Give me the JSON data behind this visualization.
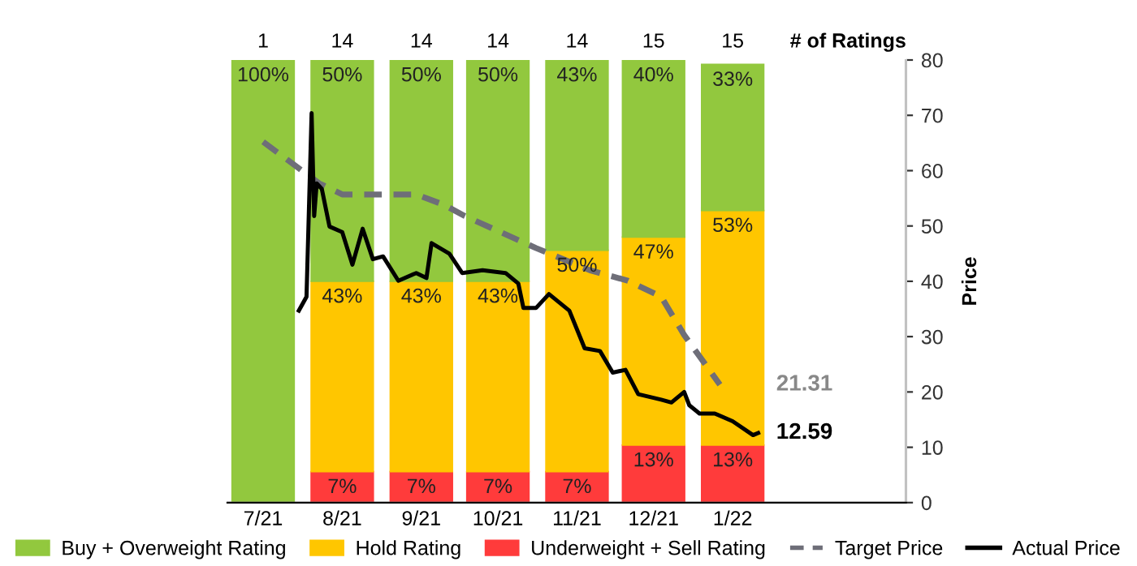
{
  "chart_data": {
    "type": "bar",
    "stacked": true,
    "legend": "bottom",
    "grid": false,
    "x": [
      "2021-07",
      "2021-08",
      "2021-09",
      "2021-10",
      "2021-11",
      "2021-12",
      "2022-01"
    ],
    "xlim": [
      "2021-06-17",
      "2022-03-10"
    ],
    "xticks": [
      {
        "value": "2021-07",
        "label": "7/21"
      },
      {
        "value": "2021-08",
        "label": "8/21"
      },
      {
        "value": "2021-09",
        "label": "9/21"
      },
      {
        "value": "2021-10",
        "label": "10/21"
      },
      {
        "value": "2021-11",
        "label": "11/21"
      },
      {
        "value": "2021-12",
        "label": "12/21"
      },
      {
        "value": "2022-01",
        "label": "1/22"
      }
    ],
    "series": [
      {
        "name": "Underweight + Sell Rating",
        "color": "#ff3b3b",
        "values": [
          null,
          7,
          7,
          7,
          7,
          13,
          13
        ],
        "value_labels": [
          null,
          "7%",
          "7%",
          "7%",
          "7%",
          "13%",
          "13%"
        ]
      },
      {
        "name": "Hold Rating",
        "color": "#ffc600",
        "values": [
          null,
          43,
          43,
          43,
          50,
          47,
          53
        ],
        "value_labels": [
          null,
          "43%",
          "43%",
          "43%",
          "50%",
          "47%",
          "53%"
        ]
      },
      {
        "name": "Buy + Overweight Rating",
        "color": "#92c83e",
        "values": [
          100,
          50,
          50,
          50,
          43,
          40,
          33
        ],
        "value_labels": [
          "100%",
          "50%",
          "50%",
          "50%",
          "43%",
          "40%",
          "33%"
        ]
      },
      {
        "name": "Target Price",
        "type": "line",
        "axis": "y2",
        "line_style": "dashed",
        "color": "#6e6e78",
        "x": [
          "2021-07-01",
          "2021-07-23",
          "2021-08-01",
          "2021-08-30",
          "2021-09-10",
          "2021-09-18",
          "2021-10-16",
          "2021-11-06",
          "2021-11-21",
          "2021-12-04",
          "2021-12-13",
          "2021-12-27"
        ],
        "values": [
          65.2,
          57.7,
          55.7,
          55.7,
          53.8,
          51.8,
          46,
          42,
          40.1,
          37.2,
          30.3,
          21.31
        ]
      },
      {
        "name": "Actual Price",
        "type": "line",
        "axis": "y2",
        "line_style": "solid",
        "color": "#000000",
        "x": [
          "2021-07-15",
          "2021-07-18",
          "2021-07-20",
          "2021-07-21",
          "2021-07-22",
          "2021-07-24",
          "2021-07-27",
          "2021-08-01",
          "2021-08-05",
          "2021-08-09",
          "2021-08-13",
          "2021-08-17",
          "2021-08-23",
          "2021-08-30",
          "2021-09-03",
          "2021-09-05",
          "2021-09-12",
          "2021-09-17",
          "2021-09-25",
          "2021-10-04",
          "2021-10-09",
          "2021-10-11",
          "2021-10-16",
          "2021-10-21",
          "2021-10-29",
          "2021-11-04",
          "2021-11-10",
          "2021-11-15",
          "2021-11-20",
          "2021-11-25",
          "2021-12-04",
          "2021-12-08",
          "2021-12-13",
          "2021-12-15",
          "2021-12-19",
          "2021-12-25",
          "2022-01-01",
          "2022-01-09",
          "2022-01-11"
        ],
        "values": [
          34.7,
          37.2,
          70.4,
          51.8,
          57.7,
          56.7,
          49.9,
          48.9,
          43,
          49.5,
          44,
          44.5,
          40.1,
          41.5,
          40.6,
          46.9,
          45,
          41.5,
          42,
          41.5,
          39.6,
          35.2,
          35.2,
          37.7,
          34.7,
          27.9,
          27.4,
          23.5,
          24,
          19.6,
          18.6,
          18.1,
          20,
          17.6,
          16.1,
          16.1,
          14.7,
          12.2,
          12.59
        ]
      }
    ],
    "y2label": "Price",
    "y2lim": [
      0,
      80
    ],
    "y2ticks": [
      0,
      10,
      20,
      30,
      40,
      50,
      60,
      70,
      80
    ],
    "annotations": [
      {
        "text": "21.31",
        "x": "2021-12-27",
        "y": 21.31
      },
      {
        "text": "12.59",
        "x": "2022-01-11",
        "y": 12.59
      },
      "1",
      "14",
      "14",
      "14",
      "14",
      "15",
      "15",
      "# of Ratings"
    ]
  }
}
